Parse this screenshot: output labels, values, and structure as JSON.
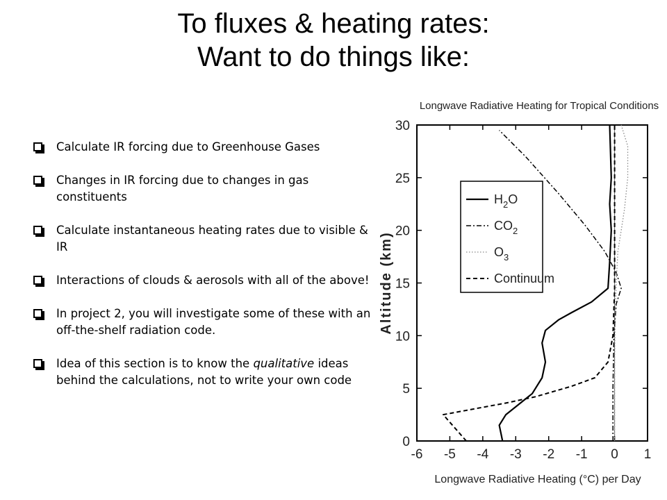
{
  "slide": {
    "title_line1": "To fluxes & heating rates:",
    "title_line2": "Want to do things like:",
    "bullets": [
      {
        "text": "Calculate IR forcing due to Greenhouse Gases"
      },
      {
        "text": "Changes in IR forcing due to changes in gas constituents"
      },
      {
        "text": "Calculate instantaneous heating rates due to visible & IR"
      },
      {
        "text": "Interactions of clouds & aerosols with all of the above!"
      },
      {
        "text": "In project 2, you will investigate some of these with an off-the-shelf radiation code."
      },
      {
        "pre": "Idea of this section is to know the ",
        "em": "qualitative",
        "post": " ideas behind the calculations, not to write your own code"
      }
    ],
    "bullet_icon": "checkbox-bullet-icon"
  },
  "chart_data": {
    "type": "line",
    "title": "Longwave Radiative Heating for Tropical Conditions",
    "xlabel": "Longwave Radiative Heating (°C) per Day",
    "ylabel": "Altitude (km)",
    "xlim": [
      -6,
      1
    ],
    "ylim": [
      0,
      30
    ],
    "xticks": [
      "-6",
      "-5",
      "-4",
      "-3",
      "-2",
      "-1",
      "0",
      "1"
    ],
    "yticks": [
      "0",
      "5",
      "10",
      "15",
      "20",
      "25",
      "30"
    ],
    "grid": false,
    "legend_position": "upper-left",
    "zero_line": true,
    "series": [
      {
        "name": "H2O",
        "label_base": "H",
        "label_sub": "2",
        "label_tail": "O",
        "style": "solid",
        "color": "#000000",
        "points": [
          [
            -3.4,
            0
          ],
          [
            -3.5,
            1.5
          ],
          [
            -3.3,
            2.5
          ],
          [
            -2.5,
            4.5
          ],
          [
            -2.2,
            6
          ],
          [
            -2.1,
            7.5
          ],
          [
            -2.2,
            9.3
          ],
          [
            -2.1,
            10.5
          ],
          [
            -1.7,
            11.5
          ],
          [
            -1.3,
            12.2
          ],
          [
            -0.7,
            13.2
          ],
          [
            -0.2,
            14.5
          ],
          [
            -0.15,
            17
          ],
          [
            -0.1,
            20
          ],
          [
            -0.15,
            22.5
          ],
          [
            -0.1,
            25
          ],
          [
            -0.15,
            30
          ]
        ]
      },
      {
        "name": "CO2",
        "label_base": "CO",
        "label_sub": "2",
        "label_tail": "",
        "style": "dashdot",
        "color": "#000000",
        "points": [
          [
            -0.05,
            0
          ],
          [
            -0.05,
            5
          ],
          [
            -0.02,
            10
          ],
          [
            0.05,
            13
          ],
          [
            0.2,
            14.5
          ],
          [
            0.05,
            16
          ],
          [
            -0.3,
            18
          ],
          [
            -0.9,
            20.5
          ],
          [
            -1.7,
            23.5
          ],
          [
            -2.7,
            27
          ],
          [
            -3.5,
            29.5
          ]
        ]
      },
      {
        "name": "O3",
        "label_base": "O",
        "label_sub": "3",
        "label_tail": "",
        "style": "dotted",
        "color": "#888888",
        "points": [
          [
            0,
            0
          ],
          [
            0,
            8
          ],
          [
            0.02,
            12
          ],
          [
            0.05,
            15
          ],
          [
            0.1,
            18
          ],
          [
            0.2,
            20
          ],
          [
            0.3,
            22
          ],
          [
            0.4,
            25
          ],
          [
            0.4,
            28
          ],
          [
            0.2,
            30
          ]
        ]
      },
      {
        "name": "Continuum",
        "label_base": "Continuum",
        "label_sub": "",
        "label_tail": "",
        "style": "dashed",
        "color": "#000000",
        "points": [
          [
            -4.5,
            0
          ],
          [
            -5.2,
            2.5
          ],
          [
            -4,
            3.2
          ],
          [
            -3.3,
            3.6
          ],
          [
            -2.4,
            4.2
          ],
          [
            -1.3,
            5.2
          ],
          [
            -0.6,
            6
          ],
          [
            -0.2,
            7.5
          ],
          [
            -0.05,
            10
          ],
          [
            0,
            14.5
          ],
          [
            0,
            30
          ]
        ]
      }
    ]
  }
}
